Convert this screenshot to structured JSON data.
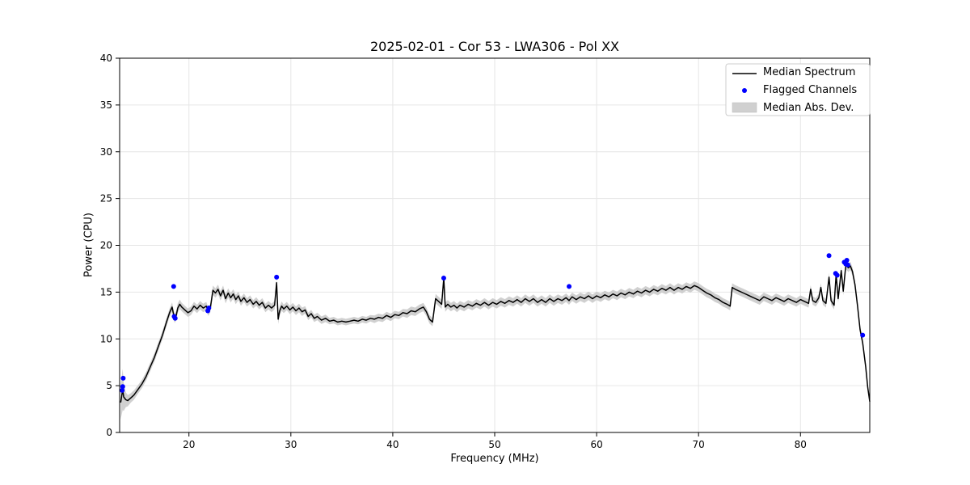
{
  "chart_data": {
    "type": "line",
    "title": "2025-02-01 - Cor 53 - LWA306 - Pol XX",
    "xlabel": "Frequency (MHz)",
    "ylabel": "Power (CPU)",
    "xlim": [
      13.2,
      86.8
    ],
    "ylim": [
      0,
      40
    ],
    "xticks": [
      20,
      30,
      40,
      50,
      60,
      70,
      80
    ],
    "yticks": [
      0,
      5,
      10,
      15,
      20,
      25,
      30,
      35,
      40
    ],
    "grid": true,
    "legend_position": "upper right",
    "legend": [
      {
        "label": "Median Spectrum",
        "type": "line",
        "color": "#000000"
      },
      {
        "label": "Flagged Channels",
        "type": "dot",
        "color": "#0000ff"
      },
      {
        "label": "Median Abs. Dev.",
        "type": "patch",
        "color": "#c8c8c8"
      }
    ],
    "colors": {
      "median_line": "#000000",
      "flagged": "#0000ff",
      "mad_band": "#c8c8c8",
      "grid": "#e6e6e6",
      "frame": "#000000"
    },
    "series_name": "Median Spectrum (x = MHz, y = Power CPU, m = median abs. dev.)",
    "points": [
      [
        13.3,
        3.2,
        1.8
      ],
      [
        13.5,
        4.6,
        2.2
      ],
      [
        13.6,
        3.8,
        1.5
      ],
      [
        13.8,
        3.5,
        0.8
      ],
      [
        14.0,
        3.4,
        0.6
      ],
      [
        14.3,
        3.7,
        0.5
      ],
      [
        14.6,
        4.0,
        0.5
      ],
      [
        15.0,
        4.6,
        0.45
      ],
      [
        15.4,
        5.2,
        0.45
      ],
      [
        15.8,
        6.0,
        0.45
      ],
      [
        16.2,
        7.0,
        0.45
      ],
      [
        16.6,
        8.0,
        0.45
      ],
      [
        17.0,
        9.2,
        0.45
      ],
      [
        17.4,
        10.4,
        0.45
      ],
      [
        17.8,
        11.8,
        0.45
      ],
      [
        18.1,
        12.8,
        0.45
      ],
      [
        18.35,
        13.4,
        0.5
      ],
      [
        18.5,
        12.6,
        0.5
      ],
      [
        18.6,
        12.2,
        0.5
      ],
      [
        18.75,
        12.5,
        0.5
      ],
      [
        18.9,
        13.3,
        0.5
      ],
      [
        19.1,
        13.7,
        0.5
      ],
      [
        19.3,
        13.4,
        0.45
      ],
      [
        19.6,
        13.1,
        0.45
      ],
      [
        19.9,
        12.8,
        0.45
      ],
      [
        20.2,
        13.0,
        0.45
      ],
      [
        20.5,
        13.5,
        0.45
      ],
      [
        20.8,
        13.2,
        0.45
      ],
      [
        21.1,
        13.6,
        0.45
      ],
      [
        21.4,
        13.3,
        0.45
      ],
      [
        21.7,
        13.5,
        0.45
      ],
      [
        21.9,
        12.9,
        0.45
      ],
      [
        22.1,
        13.3,
        0.45
      ],
      [
        22.35,
        15.2,
        0.5
      ],
      [
        22.6,
        14.9,
        0.5
      ],
      [
        22.85,
        15.3,
        0.5
      ],
      [
        23.1,
        14.6,
        0.5
      ],
      [
        23.35,
        15.2,
        0.5
      ],
      [
        23.6,
        14.3,
        0.5
      ],
      [
        23.85,
        14.9,
        0.5
      ],
      [
        24.1,
        14.4,
        0.5
      ],
      [
        24.35,
        14.8,
        0.5
      ],
      [
        24.6,
        14.2,
        0.5
      ],
      [
        24.85,
        14.6,
        0.45
      ],
      [
        25.1,
        14.0,
        0.45
      ],
      [
        25.4,
        14.4,
        0.45
      ],
      [
        25.7,
        13.9,
        0.45
      ],
      [
        26.0,
        14.2,
        0.45
      ],
      [
        26.3,
        13.7,
        0.45
      ],
      [
        26.6,
        14.0,
        0.45
      ],
      [
        26.9,
        13.6,
        0.45
      ],
      [
        27.2,
        13.9,
        0.45
      ],
      [
        27.5,
        13.3,
        0.45
      ],
      [
        27.8,
        13.6,
        0.45
      ],
      [
        28.1,
        13.3,
        0.45
      ],
      [
        28.4,
        13.6,
        0.45
      ],
      [
        28.6,
        16.0,
        0.5
      ],
      [
        28.75,
        12.1,
        0.5
      ],
      [
        28.9,
        13.0,
        0.5
      ],
      [
        29.1,
        13.5,
        0.5
      ],
      [
        29.3,
        13.2,
        0.45
      ],
      [
        29.6,
        13.5,
        0.45
      ],
      [
        29.9,
        13.1,
        0.45
      ],
      [
        30.2,
        13.4,
        0.45
      ],
      [
        30.5,
        13.0,
        0.45
      ],
      [
        30.8,
        13.3,
        0.45
      ],
      [
        31.1,
        12.9,
        0.45
      ],
      [
        31.4,
        13.1,
        0.4
      ],
      [
        31.7,
        12.4,
        0.4
      ],
      [
        32.0,
        12.7,
        0.4
      ],
      [
        32.3,
        12.2,
        0.4
      ],
      [
        32.6,
        12.4,
        0.4
      ],
      [
        33.0,
        12.0,
        0.4
      ],
      [
        33.4,
        12.2,
        0.4
      ],
      [
        33.8,
        11.9,
        0.35
      ],
      [
        34.2,
        12.0,
        0.35
      ],
      [
        34.6,
        11.8,
        0.35
      ],
      [
        35.0,
        11.9,
        0.35
      ],
      [
        35.4,
        11.8,
        0.35
      ],
      [
        35.8,
        11.9,
        0.35
      ],
      [
        36.2,
        12.0,
        0.35
      ],
      [
        36.6,
        11.9,
        0.35
      ],
      [
        37.0,
        12.1,
        0.35
      ],
      [
        37.4,
        12.0,
        0.35
      ],
      [
        37.8,
        12.2,
        0.35
      ],
      [
        38.2,
        12.1,
        0.4
      ],
      [
        38.6,
        12.3,
        0.4
      ],
      [
        39.0,
        12.2,
        0.4
      ],
      [
        39.4,
        12.5,
        0.4
      ],
      [
        39.8,
        12.3,
        0.4
      ],
      [
        40.2,
        12.6,
        0.4
      ],
      [
        40.6,
        12.5,
        0.4
      ],
      [
        41.0,
        12.8,
        0.4
      ],
      [
        41.4,
        12.7,
        0.45
      ],
      [
        41.8,
        13.0,
        0.45
      ],
      [
        42.2,
        12.9,
        0.45
      ],
      [
        42.6,
        13.2,
        0.45
      ],
      [
        43.0,
        13.4,
        0.45
      ],
      [
        43.3,
        12.9,
        0.45
      ],
      [
        43.6,
        12.1,
        0.45
      ],
      [
        43.9,
        11.8,
        0.45
      ],
      [
        44.2,
        14.3,
        0.5
      ],
      [
        44.5,
        14.0,
        0.5
      ],
      [
        44.8,
        13.7,
        0.5
      ],
      [
        45.0,
        16.5,
        0.5
      ],
      [
        45.15,
        13.4,
        0.5
      ],
      [
        45.4,
        13.7,
        0.45
      ],
      [
        45.7,
        13.4,
        0.45
      ],
      [
        46.0,
        13.6,
        0.45
      ],
      [
        46.3,
        13.3,
        0.45
      ],
      [
        46.6,
        13.6,
        0.45
      ],
      [
        47.0,
        13.4,
        0.45
      ],
      [
        47.4,
        13.7,
        0.45
      ],
      [
        47.8,
        13.5,
        0.45
      ],
      [
        48.2,
        13.8,
        0.45
      ],
      [
        48.6,
        13.6,
        0.45
      ],
      [
        49.0,
        13.9,
        0.45
      ],
      [
        49.4,
        13.6,
        0.45
      ],
      [
        49.8,
        13.9,
        0.45
      ],
      [
        50.2,
        13.7,
        0.45
      ],
      [
        50.6,
        14.0,
        0.45
      ],
      [
        51.0,
        13.8,
        0.45
      ],
      [
        51.4,
        14.1,
        0.45
      ],
      [
        51.8,
        13.9,
        0.45
      ],
      [
        52.2,
        14.2,
        0.45
      ],
      [
        52.6,
        13.9,
        0.45
      ],
      [
        53.0,
        14.3,
        0.45
      ],
      [
        53.4,
        14.0,
        0.45
      ],
      [
        53.8,
        14.3,
        0.45
      ],
      [
        54.2,
        13.9,
        0.45
      ],
      [
        54.6,
        14.2,
        0.45
      ],
      [
        55.0,
        13.9,
        0.45
      ],
      [
        55.4,
        14.3,
        0.45
      ],
      [
        55.8,
        14.0,
        0.45
      ],
      [
        56.2,
        14.3,
        0.45
      ],
      [
        56.6,
        14.1,
        0.45
      ],
      [
        57.0,
        14.4,
        0.45
      ],
      [
        57.3,
        14.1,
        0.45
      ],
      [
        57.6,
        14.5,
        0.45
      ],
      [
        58.0,
        14.2,
        0.45
      ],
      [
        58.4,
        14.5,
        0.45
      ],
      [
        58.8,
        14.3,
        0.45
      ],
      [
        59.2,
        14.6,
        0.45
      ],
      [
        59.6,
        14.3,
        0.45
      ],
      [
        60.0,
        14.6,
        0.45
      ],
      [
        60.4,
        14.4,
        0.45
      ],
      [
        60.8,
        14.7,
        0.45
      ],
      [
        61.2,
        14.5,
        0.45
      ],
      [
        61.6,
        14.8,
        0.45
      ],
      [
        62.0,
        14.6,
        0.45
      ],
      [
        62.4,
        14.9,
        0.45
      ],
      [
        62.8,
        14.7,
        0.45
      ],
      [
        63.2,
        15.0,
        0.45
      ],
      [
        63.6,
        14.8,
        0.45
      ],
      [
        64.0,
        15.1,
        0.45
      ],
      [
        64.4,
        14.9,
        0.45
      ],
      [
        64.8,
        15.2,
        0.45
      ],
      [
        65.2,
        15.0,
        0.45
      ],
      [
        65.6,
        15.3,
        0.45
      ],
      [
        66.0,
        15.1,
        0.45
      ],
      [
        66.4,
        15.4,
        0.45
      ],
      [
        66.8,
        15.2,
        0.45
      ],
      [
        67.2,
        15.5,
        0.45
      ],
      [
        67.6,
        15.2,
        0.45
      ],
      [
        68.0,
        15.5,
        0.45
      ],
      [
        68.4,
        15.3,
        0.45
      ],
      [
        68.8,
        15.6,
        0.45
      ],
      [
        69.2,
        15.4,
        0.45
      ],
      [
        69.6,
        15.7,
        0.45
      ],
      [
        70.0,
        15.5,
        0.45
      ],
      [
        70.4,
        15.2,
        0.45
      ],
      [
        70.8,
        14.9,
        0.45
      ],
      [
        71.2,
        14.7,
        0.45
      ],
      [
        71.6,
        14.4,
        0.45
      ],
      [
        72.0,
        14.2,
        0.45
      ],
      [
        72.4,
        13.9,
        0.45
      ],
      [
        72.8,
        13.7,
        0.45
      ],
      [
        73.1,
        13.5,
        0.45
      ],
      [
        73.3,
        15.5,
        0.45
      ],
      [
        73.6,
        15.3,
        0.45
      ],
      [
        74.0,
        15.1,
        0.45
      ],
      [
        74.4,
        14.9,
        0.45
      ],
      [
        74.8,
        14.7,
        0.45
      ],
      [
        75.2,
        14.5,
        0.45
      ],
      [
        75.6,
        14.3,
        0.45
      ],
      [
        76.0,
        14.1,
        0.45
      ],
      [
        76.4,
        14.5,
        0.45
      ],
      [
        76.8,
        14.3,
        0.45
      ],
      [
        77.2,
        14.1,
        0.45
      ],
      [
        77.6,
        14.4,
        0.45
      ],
      [
        78.0,
        14.2,
        0.45
      ],
      [
        78.4,
        14.0,
        0.45
      ],
      [
        78.8,
        14.3,
        0.45
      ],
      [
        79.2,
        14.1,
        0.45
      ],
      [
        79.6,
        13.9,
        0.45
      ],
      [
        80.0,
        14.2,
        0.45
      ],
      [
        80.4,
        14.0,
        0.45
      ],
      [
        80.8,
        13.8,
        0.45
      ],
      [
        81.0,
        15.3,
        0.45
      ],
      [
        81.2,
        14.1,
        0.45
      ],
      [
        81.5,
        13.9,
        0.45
      ],
      [
        81.8,
        14.4,
        0.45
      ],
      [
        82.0,
        15.5,
        0.45
      ],
      [
        82.2,
        14.1,
        0.45
      ],
      [
        82.5,
        13.8,
        0.45
      ],
      [
        82.8,
        16.6,
        0.45
      ],
      [
        83.0,
        14.1,
        0.45
      ],
      [
        83.3,
        13.6,
        0.45
      ],
      [
        83.5,
        16.9,
        0.45
      ],
      [
        83.7,
        14.3,
        0.45
      ],
      [
        84.0,
        17.3,
        0.45
      ],
      [
        84.2,
        15.1,
        0.45
      ],
      [
        84.45,
        17.9,
        0.45
      ],
      [
        84.7,
        17.6,
        0.45
      ],
      [
        84.9,
        17.8,
        0.45
      ],
      [
        85.1,
        17.2,
        0.45
      ],
      [
        85.35,
        15.8,
        0.45
      ],
      [
        85.6,
        13.5,
        0.45
      ],
      [
        85.85,
        11.0,
        0.45
      ],
      [
        86.1,
        9.6,
        0.4
      ],
      [
        86.4,
        7.0,
        0.4
      ],
      [
        86.6,
        4.8,
        0.35
      ],
      [
        86.8,
        3.3,
        0.3
      ]
    ],
    "flagged_channels": [
      [
        13.45,
        4.5
      ],
      [
        13.5,
        4.9
      ],
      [
        13.55,
        5.8
      ],
      [
        18.5,
        15.6
      ],
      [
        18.55,
        12.4
      ],
      [
        18.65,
        12.2
      ],
      [
        21.85,
        13.0
      ],
      [
        21.95,
        13.3
      ],
      [
        28.6,
        16.6
      ],
      [
        45.0,
        16.5
      ],
      [
        57.3,
        15.6
      ],
      [
        82.8,
        18.9
      ],
      [
        83.45,
        17.0
      ],
      [
        83.6,
        16.8
      ],
      [
        84.3,
        18.2
      ],
      [
        84.45,
        18.0
      ],
      [
        84.55,
        18.4
      ],
      [
        84.65,
        17.9
      ],
      [
        86.1,
        10.4
      ]
    ]
  }
}
